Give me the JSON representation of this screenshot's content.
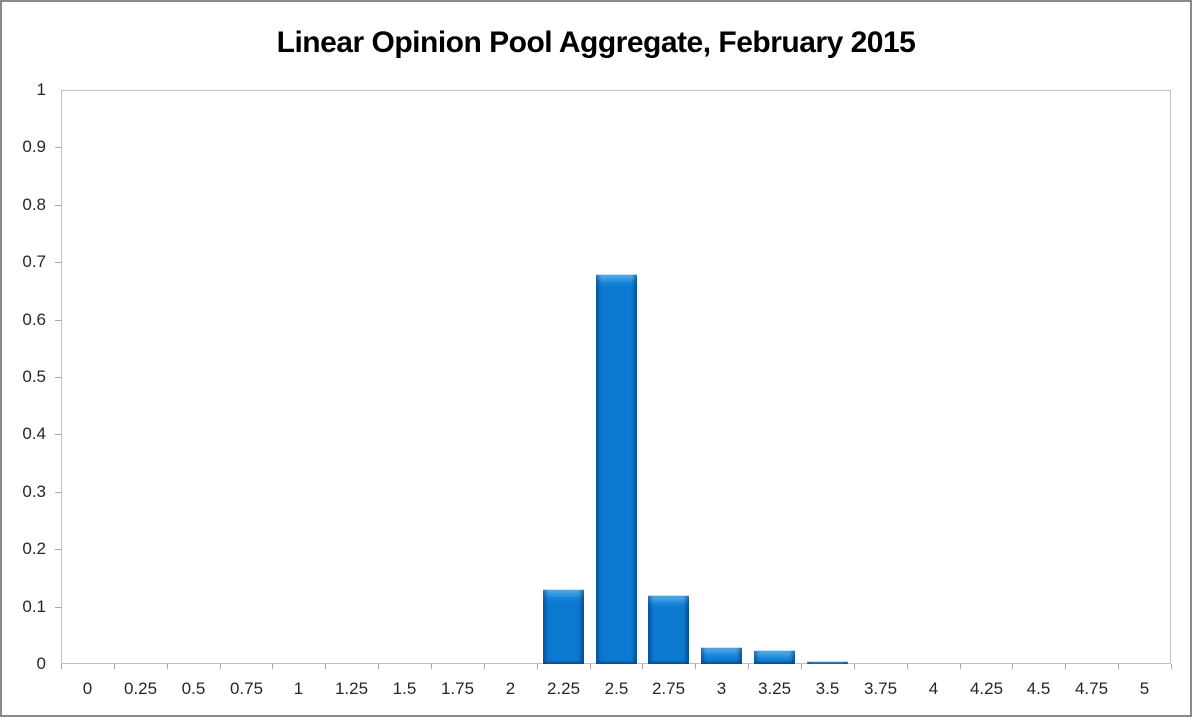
{
  "figure": {
    "title": "Linear Opinion Pool Aggregate, February 2015"
  },
  "chart_data": {
    "type": "bar",
    "title": "Linear Opinion Pool Aggregate, February 2015",
    "categories": [
      "0",
      "0.25",
      "0.5",
      "0.75",
      "1",
      "1.25",
      "1.5",
      "1.75",
      "2",
      "2.25",
      "2.5",
      "2.75",
      "3",
      "3.25",
      "3.5",
      "3.75",
      "4",
      "4.25",
      "4.5",
      "4.75",
      "5"
    ],
    "values": [
      0,
      0,
      0,
      0,
      0,
      0,
      0,
      0,
      0,
      0.13,
      0.68,
      0.12,
      0.03,
      0.025,
      0.005,
      0,
      0,
      0,
      0,
      0,
      0
    ],
    "xlabel": "",
    "ylabel": "",
    "ylim": [
      0,
      1
    ],
    "ytick_step": 0.1,
    "ytick_labels": [
      "0",
      "0.1",
      "0.2",
      "0.3",
      "0.4",
      "0.5",
      "0.6",
      "0.7",
      "0.8",
      "0.9",
      "1"
    ],
    "grid": false,
    "legend": null,
    "colors": {
      "bar_fill": "#0b79d0",
      "bar_highlight": "#8dcbf2",
      "bar_edge": "#0a5ca6",
      "axis_line": "#c0c0c0",
      "tick_mark": "#a6a6a6",
      "tick_label": "#262626",
      "title_text": "#000000",
      "outer_border": "#8a8a8a"
    }
  }
}
